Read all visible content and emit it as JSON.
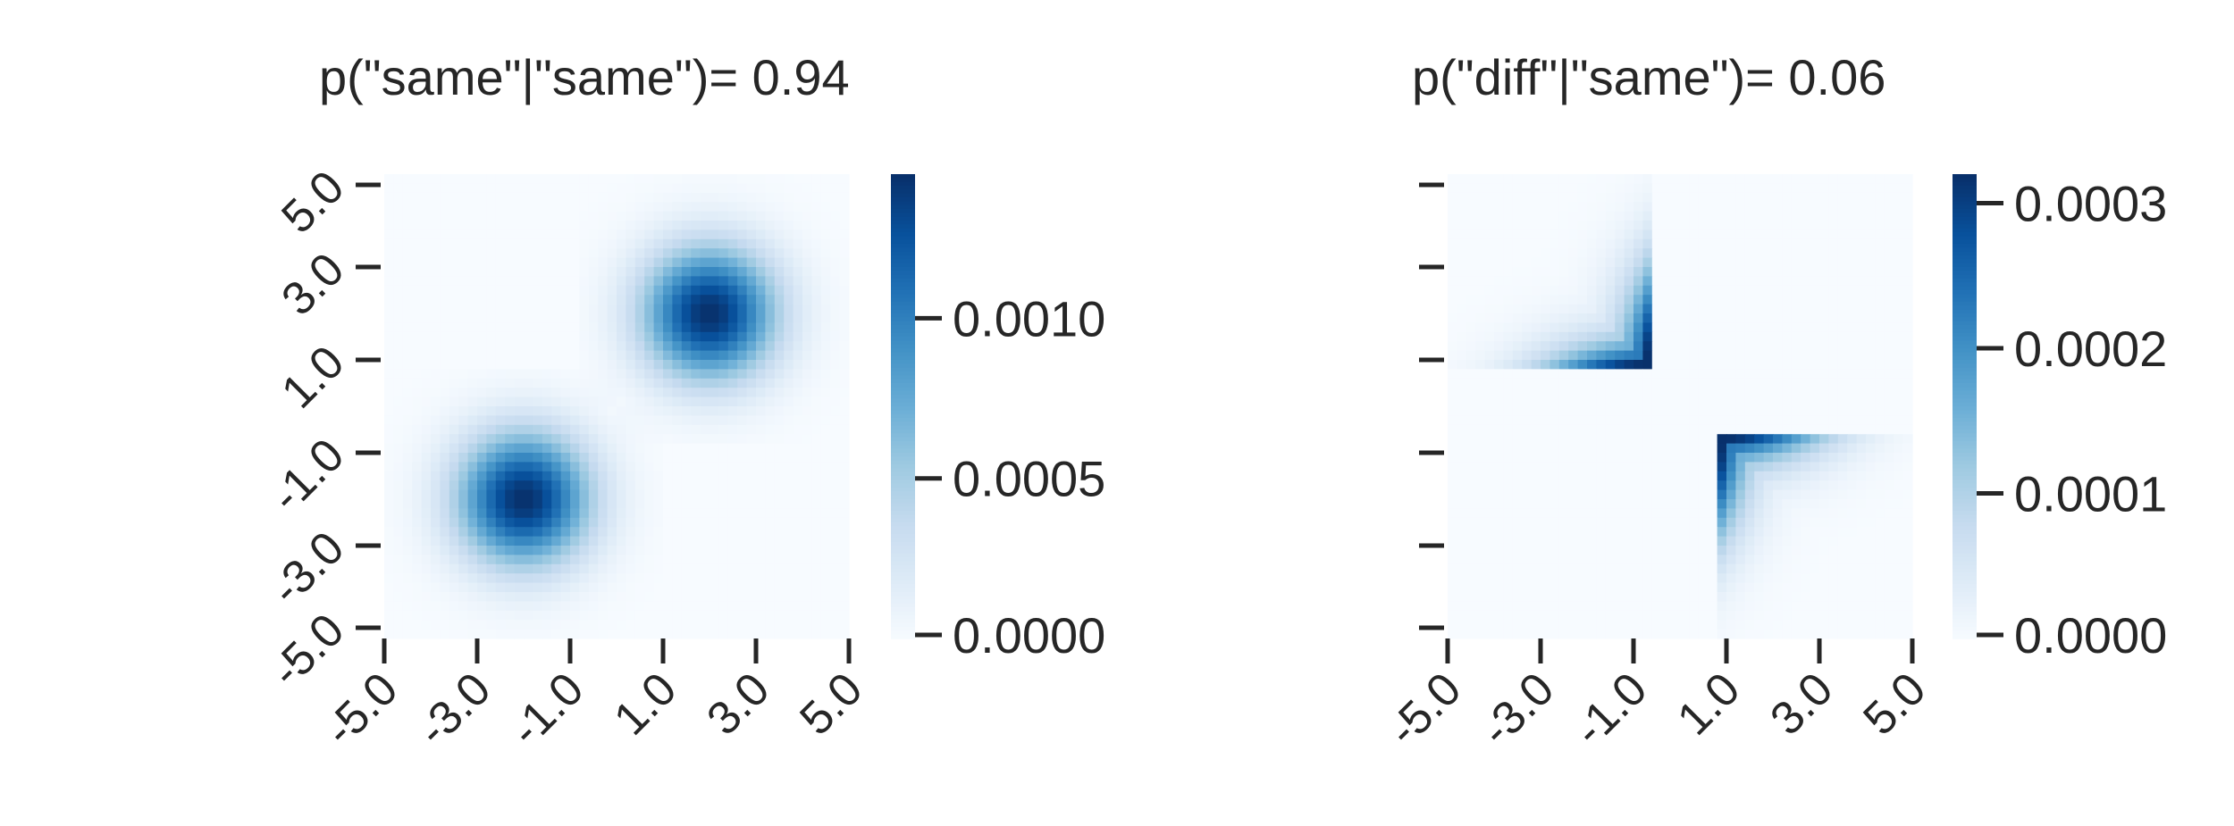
{
  "chart_data": [
    {
      "type": "heatmap",
      "title": "p(\"same\"|\"same\")= 0.94",
      "xlabel": "",
      "ylabel": "",
      "x_tick_labels": [
        "-5.0",
        "-3.0",
        "-1.0",
        "1.0",
        "3.0",
        "5.0"
      ],
      "y_tick_labels": [
        "5.0",
        "3.0",
        "1.0",
        "-1.0",
        "-3.0",
        "-5.0"
      ],
      "x_range": [
        -5,
        5
      ],
      "y_range": [
        -5,
        5
      ],
      "grid_cells": 50,
      "colormap": "Blues",
      "color_range": [
        0,
        0.00145
      ],
      "colorbar_ticks": [
        {
          "value": 0.0,
          "label": "0.0000"
        },
        {
          "value": 0.0005,
          "label": "0.0005"
        },
        {
          "value": 0.001,
          "label": "0.0010"
        }
      ],
      "distribution": {
        "kind": "two-gaussian-blobs",
        "centers": [
          [
            -2,
            -2
          ],
          [
            2,
            2
          ]
        ],
        "sigma": 1.0,
        "peak": 0.00145,
        "masked_region": "same-sign quadrants only (staircase boundary near axes)"
      }
    },
    {
      "type": "heatmap",
      "title": "p(\"diff\"|\"same\")= 0.06",
      "xlabel": "",
      "ylabel": "",
      "x_tick_labels": [
        "-5.0",
        "-3.0",
        "-1.0",
        "1.0",
        "3.0",
        "5.0"
      ],
      "y_tick_labels": [
        "",
        "",
        "",
        "",
        "",
        ""
      ],
      "x_range": [
        -5,
        5
      ],
      "y_range": [
        -5,
        5
      ],
      "grid_cells": 50,
      "colormap": "Blues",
      "color_range": [
        0,
        0.00032
      ],
      "colorbar_ticks": [
        {
          "value": 0.0,
          "label": "0.0000"
        },
        {
          "value": 0.0001,
          "label": "0.0001"
        },
        {
          "value": 0.0002,
          "label": "0.0002"
        },
        {
          "value": 0.0003,
          "label": "0.0003"
        }
      ],
      "distribution": {
        "kind": "gaussian-tails-in-opposite-sign-corners",
        "regions": [
          "x<-0.7 and y>0.9",
          "x>0.9 and y<-0.7"
        ],
        "peak": 0.00032,
        "concentration": "highest along the inner edges near the axes"
      }
    }
  ]
}
